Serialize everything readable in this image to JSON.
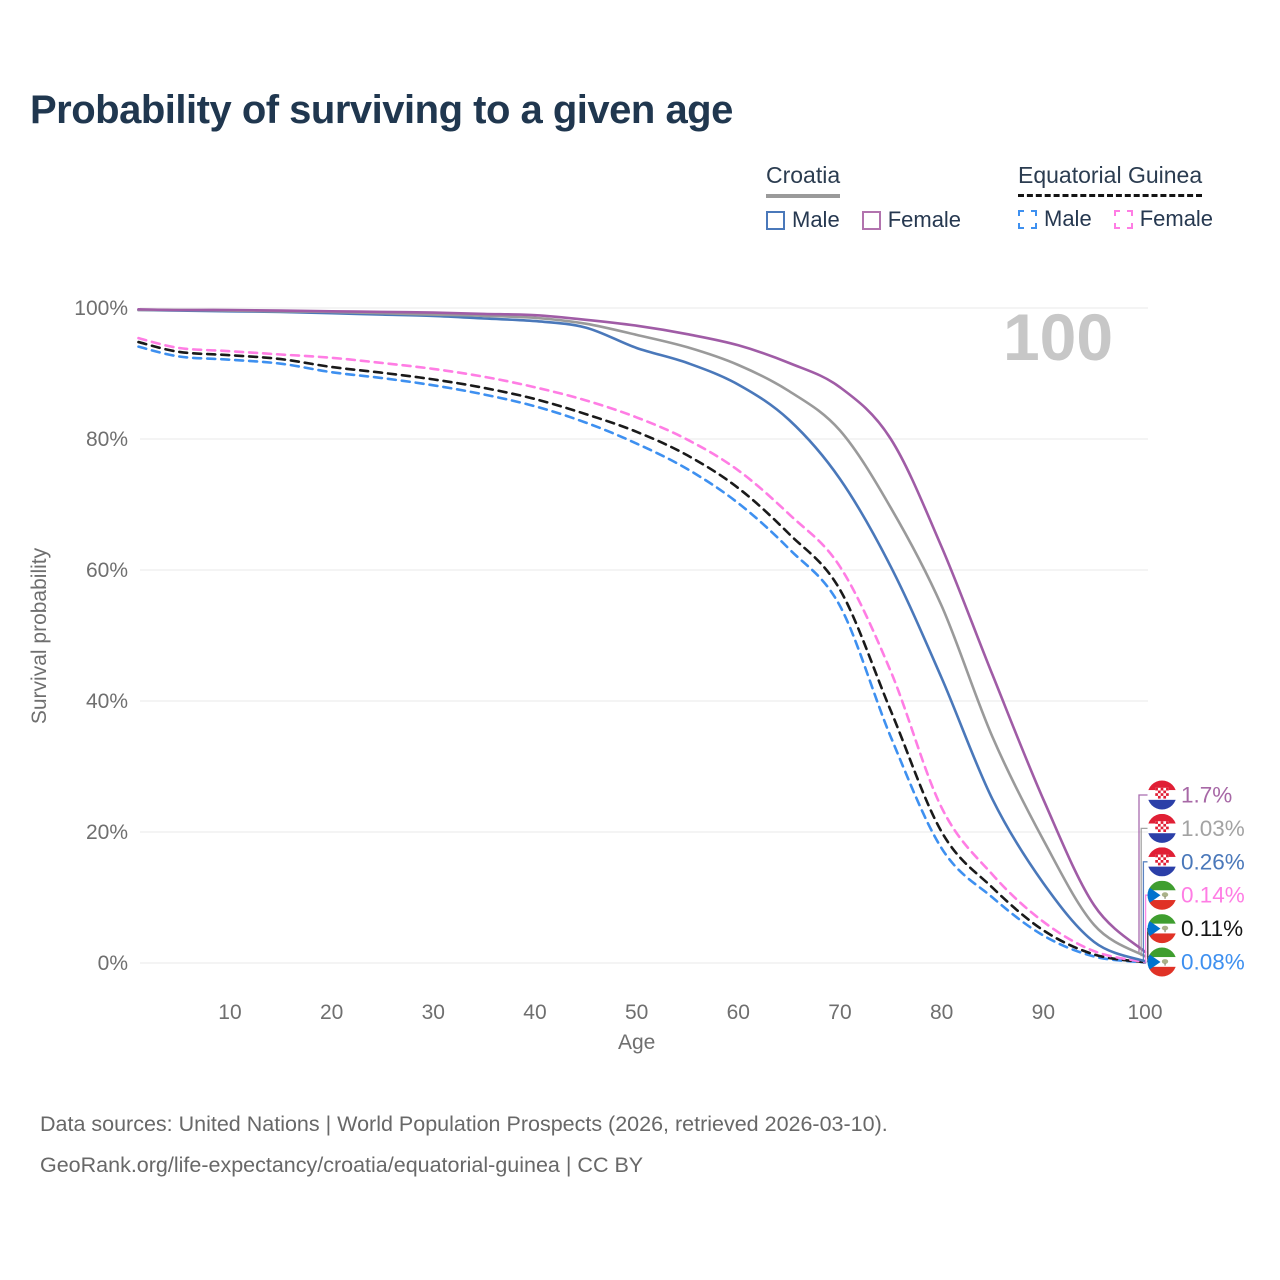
{
  "title": "Probability of surviving to a given age",
  "watermark_label": "100",
  "legend": {
    "groups": [
      {
        "label": "Croatia",
        "line_style": "solid",
        "line_color": "#9a9a9a",
        "items": [
          {
            "label": "Male",
            "swatch_color": "#4a78ba",
            "swatch_style": "solid"
          },
          {
            "label": "Female",
            "swatch_color": "#b273ae",
            "swatch_style": "solid"
          }
        ]
      },
      {
        "label": "Equatorial Guinea",
        "line_style": "dashed",
        "line_color": "#141414",
        "items": [
          {
            "label": "Male",
            "swatch_color": "#3e90f0",
            "swatch_style": "dashed"
          },
          {
            "label": "Female",
            "swatch_color": "#ff7de4",
            "swatch_style": "dashed"
          }
        ]
      }
    ]
  },
  "chart_data": {
    "type": "line",
    "title": "Probability of surviving to a given age",
    "xlabel": "Age",
    "ylabel": "Survival probability",
    "xlim": [
      0,
      100
    ],
    "ylim": [
      0,
      100
    ],
    "x_ticks": [
      10,
      20,
      30,
      40,
      50,
      60,
      70,
      80,
      90,
      100
    ],
    "y_ticks": [
      "0%",
      "20%",
      "40%",
      "60%",
      "80%",
      "100%"
    ],
    "grid": "horizontal",
    "hover_age": 100,
    "ages": [
      1,
      5,
      10,
      15,
      20,
      25,
      30,
      35,
      40,
      45,
      50,
      55,
      60,
      65,
      70,
      75,
      80,
      85,
      90,
      95,
      100
    ],
    "series": [
      {
        "id": "eq-guinea-male",
        "label": "Equatorial Guinea — Male",
        "flag": "equatorial-guinea",
        "color": "#3e90f0",
        "dash": true,
        "end_label": "0.08%",
        "end_label_color": "#3e90f0",
        "values": [
          94.1,
          92.6,
          92.1,
          91.5,
          90.2,
          89.3,
          88.2,
          86.8,
          85.0,
          82.5,
          79.3,
          75.4,
          70.2,
          63.2,
          54.5,
          34.5,
          17.5,
          10.0,
          4.2,
          1.0,
          0.08
        ]
      },
      {
        "id": "eq-guinea-total",
        "label": "Equatorial Guinea",
        "flag": "equatorial-guinea",
        "color": "#1a1a1a",
        "dash": true,
        "end_label": "0.11%",
        "end_label_color": "#141414",
        "values": [
          94.8,
          93.3,
          92.8,
          92.2,
          91.0,
          90.1,
          89.1,
          87.8,
          86.1,
          83.8,
          81.1,
          77.5,
          72.5,
          65.5,
          57.0,
          38.5,
          20.0,
          11.5,
          5.0,
          1.3,
          0.11
        ]
      },
      {
        "id": "eq-guinea-female",
        "label": "Equatorial Guinea — Female",
        "flag": "equatorial-guinea",
        "color": "#ff7de4",
        "dash": true,
        "end_label": "0.14%",
        "end_label_color": "#ff7de4",
        "values": [
          95.4,
          93.9,
          93.4,
          92.9,
          92.4,
          91.6,
          90.7,
          89.5,
          87.9,
          85.9,
          83.3,
          79.9,
          75.2,
          68.5,
          60.5,
          44.5,
          23.7,
          13.5,
          6.3,
          1.8,
          0.14
        ]
      },
      {
        "id": "croatia-male",
        "label": "Croatia — Male",
        "flag": "croatia",
        "color": "#4a78ba",
        "dash": false,
        "end_label": "0.26%",
        "end_label_color": "#4a78ba",
        "values": [
          99.7,
          99.6,
          99.5,
          99.4,
          99.2,
          99.0,
          98.8,
          98.4,
          98.0,
          97.0,
          93.9,
          91.6,
          88.3,
          82.9,
          73.9,
          60.5,
          43.5,
          25.0,
          12.2,
          3.2,
          0.26
        ]
      },
      {
        "id": "croatia-total",
        "label": "Croatia",
        "flag": "croatia",
        "color": "#9a9a9a",
        "dash": false,
        "end_label": "1.03%",
        "end_label_color": "#a3a3a3",
        "values": [
          99.7,
          99.7,
          99.6,
          99.5,
          99.4,
          99.2,
          99.0,
          98.8,
          98.5,
          97.6,
          95.9,
          94.0,
          91.3,
          87.3,
          81.3,
          69.5,
          54.5,
          34.5,
          18.8,
          5.8,
          1.03
        ]
      },
      {
        "id": "croatia-female",
        "label": "Croatia — Female",
        "flag": "croatia",
        "color": "#a05ca6",
        "dash": false,
        "end_label": "1.7%",
        "end_label_color": "#a768a6",
        "values": [
          99.8,
          99.7,
          99.7,
          99.6,
          99.5,
          99.4,
          99.3,
          99.1,
          98.9,
          98.2,
          97.3,
          96.0,
          94.3,
          91.6,
          87.9,
          80.0,
          63.5,
          44.0,
          25.0,
          8.8,
          1.7
        ]
      }
    ]
  },
  "footer": {
    "line1": "Data sources: United Nations | World Population Prospects (2026, retrieved 2026-03-10).",
    "line2": "GeoRank.org/life-expectancy/croatia/equatorial-guinea | CC BY"
  }
}
